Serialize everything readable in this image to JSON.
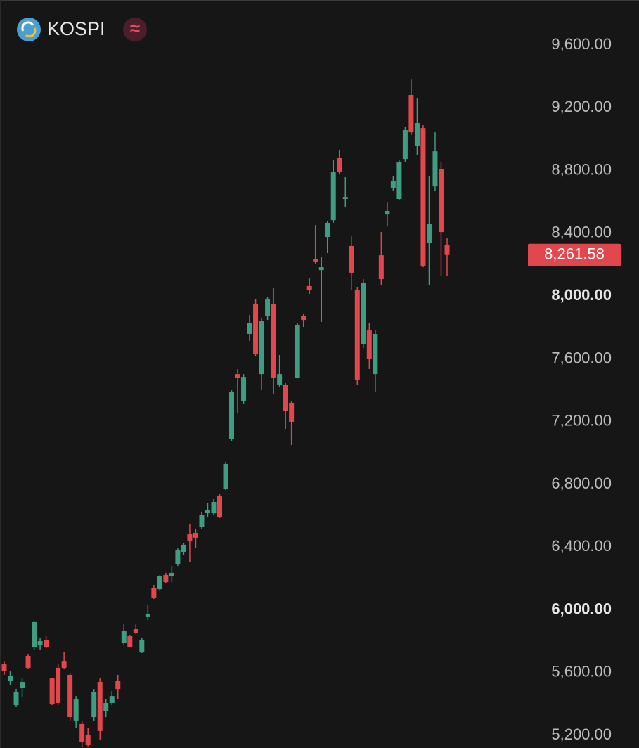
{
  "chart_data": {
    "type": "candlestick",
    "title": "KOSPI",
    "up_color": "#3f9d84",
    "down_color": "#e2474e",
    "ylim": [
      5120,
      9887
    ],
    "yticks": [
      {
        "value": 5200,
        "label": "5,200.00"
      },
      {
        "value": 5600,
        "label": "5,600.00"
      },
      {
        "value": 6000,
        "label": "6,000.00"
      },
      {
        "value": 6400,
        "label": "6,400.00"
      },
      {
        "value": 6800,
        "label": "6,800.00"
      },
      {
        "value": 7200,
        "label": "7,200.00"
      },
      {
        "value": 7600,
        "label": "7,600.00"
      },
      {
        "value": 8000,
        "label": "8,000.00"
      },
      {
        "value": 8400,
        "label": "8,400.00"
      },
      {
        "value": 8800,
        "label": "8,800.00"
      },
      {
        "value": 9200,
        "label": "9,200.00"
      },
      {
        "value": 9600,
        "label": "9,600.00"
      }
    ],
    "last_price": {
      "value": 8261.58,
      "label": "8,261.58"
    },
    "open": [
      5653,
      5550,
      5393,
      5505,
      5707,
      5765,
      5774,
      5810,
      5563,
      5631,
      5675,
      5586,
      5295,
      5273,
      5205,
      5317,
      5541,
      5353,
      5407,
      5550,
      5788,
      5832,
      5877,
      5729,
      5958,
      6137,
      6132,
      6222,
      6213,
      6294,
      6370,
      6482,
      6491,
      6527,
      6616,
      6616,
      6728,
      6773,
      7087,
      7503,
      7333,
      7759,
      7951,
      7503,
      7871,
      7951,
      7432,
      7432,
      7320,
      7481,
      7871,
      8064,
      8238,
      8166,
      8377,
      8484,
      8879,
      8619,
      8319,
      8041,
      7692,
      7781,
      7503,
      8260,
      8520,
      8686,
      8619,
      8874,
      9282,
      8955,
      9071,
      8341,
      8699,
      8811,
      8328
    ],
    "high": [
      5675,
      5608,
      5496,
      5563,
      5720,
      5931,
      5819,
      5832,
      5568,
      5653,
      5729,
      5595,
      5451,
      5295,
      5250,
      5496,
      5563,
      5429,
      5483,
      5586,
      5913,
      5841,
      5908,
      5819,
      6034,
      6159,
      6222,
      6236,
      6280,
      6392,
      6428,
      6549,
      6518,
      6625,
      6683,
      6706,
      6742,
      6943,
      7400,
      7535,
      7503,
      7880,
      7983,
      7862,
      7996,
      8050,
      7624,
      7445,
      7333,
      7826,
      7884,
      8117,
      8453,
      8251,
      8476,
      8865,
      8933,
      8758,
      8381,
      8059,
      8108,
      7826,
      7781,
      8408,
      8596,
      8767,
      8865,
      9080,
      9380,
      9259,
      9089,
      8767,
      9044,
      8856,
      8372
    ],
    "low": [
      5586,
      5519,
      5384,
      5442,
      5622,
      5743,
      5743,
      5756,
      5393,
      5393,
      5622,
      5295,
      5250,
      5128,
      5130,
      5295,
      5174,
      5317,
      5393,
      5429,
      5774,
      5760,
      5846,
      5725,
      5935,
      6070,
      6123,
      6168,
      6177,
      6280,
      6348,
      6303,
      6392,
      6518,
      6594,
      6607,
      6585,
      6764,
      7078,
      7253,
      7311,
      7714,
      7615,
      7400,
      7848,
      7378,
      7423,
      7154,
      7051,
      7476,
      7804,
      8014,
      8207,
      7835,
      8274,
      8467,
      8776,
      8565,
      8041,
      7436,
      7669,
      7535,
      7391,
      8072,
      8444,
      8668,
      8610,
      8856,
      9027,
      8901,
      8184,
      8072,
      8668,
      8131,
      8126
    ],
    "close": [
      5608,
      5577,
      5474,
      5541,
      5631,
      5922,
      5801,
      5765,
      5398,
      5407,
      5631,
      5317,
      5429,
      5160,
      5138,
      5474,
      5228,
      5407,
      5451,
      5496,
      5864,
      5765,
      5855,
      5810,
      5976,
      6079,
      6213,
      6177,
      6236,
      6383,
      6415,
      6437,
      6460,
      6607,
      6638,
      6688,
      6594,
      6930,
      7387,
      7481,
      7485,
      7826,
      7633,
      7844,
      7978,
      7481,
      7503,
      7266,
      7199,
      7817,
      7848,
      8037,
      8220,
      8184,
      8467,
      8789,
      8789,
      8632,
      8149,
      7468,
      8086,
      7602,
      7759,
      8108,
      8543,
      8731,
      8856,
      9058,
      9044,
      9103,
      8193,
      8462,
      8923,
      8408,
      8262
    ]
  }
}
